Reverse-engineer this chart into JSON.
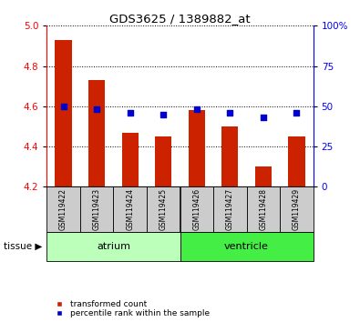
{
  "title": "GDS3625 / 1389882_at",
  "samples": [
    "GSM119422",
    "GSM119423",
    "GSM119424",
    "GSM119425",
    "GSM119426",
    "GSM119427",
    "GSM119428",
    "GSM119429"
  ],
  "transformed_count": [
    4.93,
    4.73,
    4.47,
    4.45,
    4.58,
    4.5,
    4.3,
    4.45
  ],
  "percentile_rank": [
    50,
    48,
    46,
    45,
    48,
    46,
    43,
    46
  ],
  "ylim_left": [
    4.2,
    5.0
  ],
  "ylim_right": [
    0,
    100
  ],
  "yticks_left": [
    4.2,
    4.4,
    4.6,
    4.8,
    5.0
  ],
  "yticks_right": [
    0,
    25,
    50,
    75,
    100
  ],
  "bar_color": "#cc2200",
  "dot_color": "#0000cc",
  "atrium_indices": [
    0,
    1,
    2,
    3
  ],
  "ventricle_indices": [
    4,
    5,
    6,
    7
  ],
  "atrium_label": "atrium",
  "ventricle_label": "ventricle",
  "tissue_label": "tissue",
  "legend_bar_label": "transformed count",
  "legend_dot_label": "percentile rank within the sample",
  "bar_width": 0.5,
  "background_color": "#ffffff",
  "atrium_color": "#bbffbb",
  "ventricle_color": "#44ee44",
  "sample_bg_color": "#cccccc"
}
